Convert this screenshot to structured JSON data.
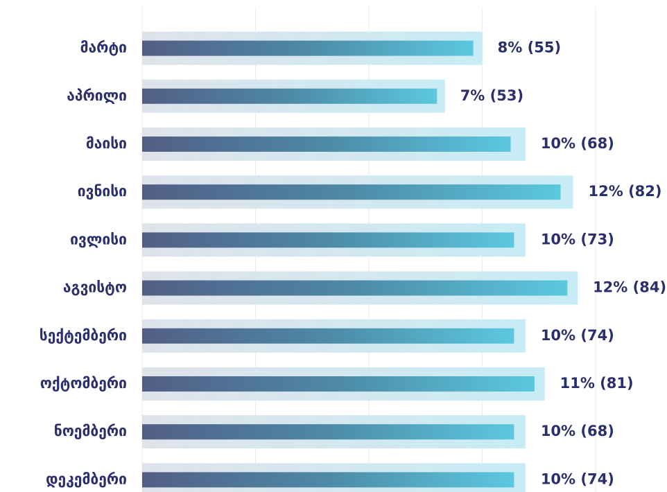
{
  "chart_data": {
    "type": "bar",
    "orientation": "horizontal",
    "categories": [
      "მარტი",
      "აპრილი",
      "მაისი",
      "ივნისი",
      "ივლისი",
      "აგვისტო",
      "სექტემბერი",
      "ოქტომბერი",
      "ნოემბერი",
      "დეკემბერი"
    ],
    "series": [
      {
        "color": "#c8ecf5",
        "values": [
          3.0,
          2.67,
          3.38,
          3.8,
          3.38,
          3.84,
          3.38,
          3.55,
          3.38,
          3.38
        ]
      },
      {
        "color": "#5bc8e0",
        "values": [
          2.92,
          2.6,
          3.25,
          3.69,
          3.28,
          3.75,
          3.28,
          3.46,
          3.28,
          3.28
        ]
      }
    ],
    "labels": [
      "8% (55)",
      "7% (53)",
      "10% (68)",
      "12% (82)",
      "10% (73)",
      "12% (84)",
      "10% (74)",
      "11% (81)",
      "10% (68)",
      "10% (74)"
    ],
    "xlim": [
      0,
      4.5
    ],
    "xticks": [
      0,
      1,
      2,
      3,
      4
    ],
    "grid": true
  }
}
